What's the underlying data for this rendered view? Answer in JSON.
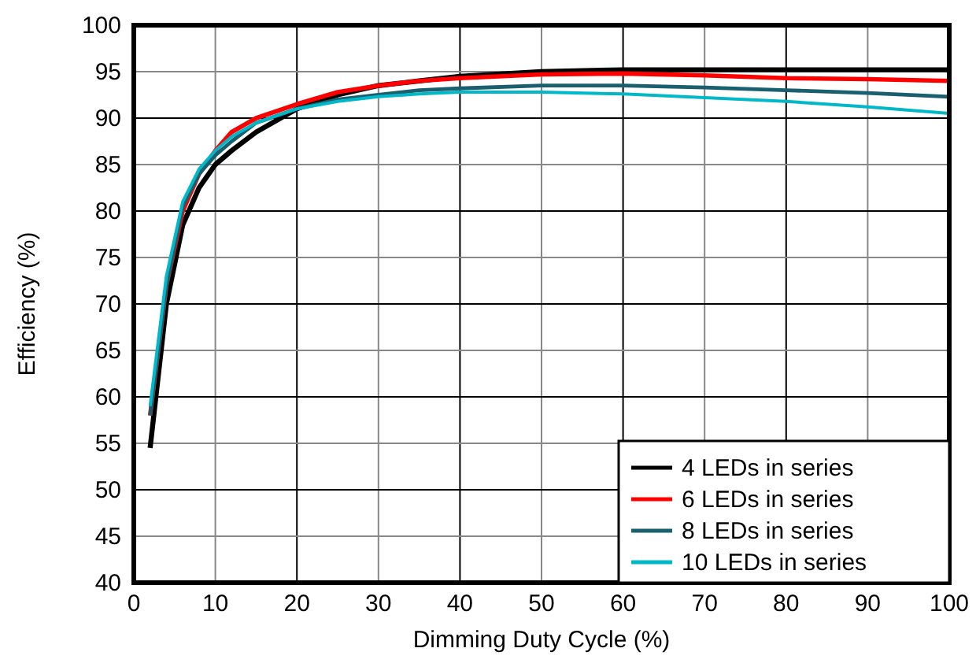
{
  "chart_data": {
    "type": "line",
    "xlabel": "Dimming Duty Cycle (%)",
    "ylabel": "Efficiency (%)",
    "x": [
      2,
      4,
      6,
      8,
      10,
      12,
      15,
      20,
      25,
      30,
      35,
      40,
      50,
      60,
      70,
      80,
      90,
      100
    ],
    "series": [
      {
        "name": "4 LEDs in series",
        "color": "#000000",
        "values": [
          54.5,
          70,
          78.5,
          82.5,
          85,
          86.5,
          88.5,
          91,
          92.5,
          93.5,
          94,
          94.5,
          95,
          95.2,
          95.2,
          95.2,
          95.2,
          95.2
        ]
      },
      {
        "name": "6 LEDs in series",
        "color": "#ff0000",
        "values": [
          58,
          72,
          80,
          84,
          86.5,
          88.5,
          90,
          91.5,
          92.8,
          93.5,
          94,
          94.3,
          94.7,
          94.8,
          94.6,
          94.3,
          94.2,
          94
        ]
      },
      {
        "name": "8 LEDs in series",
        "color": "#1a5f6e",
        "values": [
          58,
          72,
          80.5,
          84,
          86,
          87.5,
          89.5,
          91,
          92,
          92.5,
          93,
          93.2,
          93.5,
          93.5,
          93.3,
          93,
          92.7,
          92.3
        ]
      },
      {
        "name": "10 LEDs in series",
        "color": "#00b8c8",
        "values": [
          59,
          73,
          81,
          84.5,
          86.5,
          88,
          89.5,
          91,
          91.8,
          92.3,
          92.6,
          92.8,
          92.8,
          92.6,
          92.2,
          91.8,
          91.2,
          90.5
        ]
      }
    ],
    "xlim": [
      0,
      100
    ],
    "xticks": [
      0,
      10,
      20,
      30,
      40,
      50,
      60,
      70,
      80,
      90,
      100
    ],
    "ylim": [
      40,
      100
    ],
    "yticks": [
      40,
      45,
      50,
      55,
      60,
      65,
      70,
      75,
      80,
      85,
      90,
      95,
      100
    ],
    "grid": true,
    "legend": "bottom right",
    "line_style": "solid"
  }
}
